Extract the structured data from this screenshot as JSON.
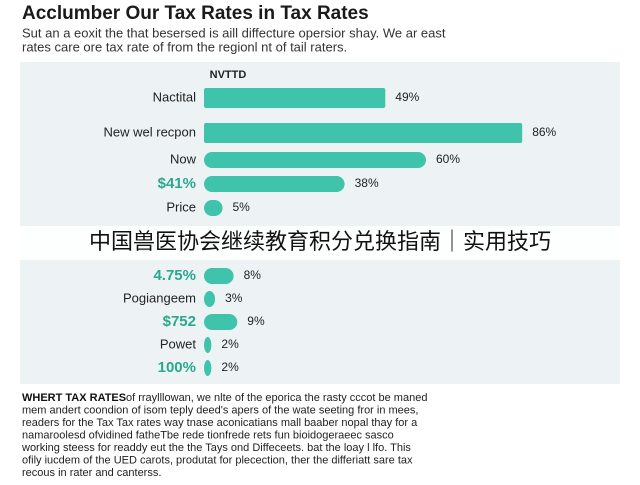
{
  "chart_data": {
    "type": "bar",
    "title": "Acclumber Our Tax Rates in Tax Rates",
    "subtitle": [
      "Sut an a eoxit the that besersed is aill diffecture opersior shay. We ar east",
      "rates care ore tax rate of from the regionl nt of tail raters."
    ],
    "header": "NVTTD",
    "categories": [
      "Nactital",
      "New wel recpon",
      "Now",
      "$41%",
      "Price",
      "4.75%",
      "Pogiangeem",
      "$752",
      "Powet",
      "100%"
    ],
    "label_colors": [
      "#222222",
      "#222222",
      "#222222",
      "#2aa88e",
      "#222222",
      "#2aa88e",
      "#222222",
      "#2aa88e",
      "#222222",
      "#2aa88e"
    ],
    "values": [
      49,
      86,
      60,
      38,
      5,
      8,
      3,
      9,
      2,
      2
    ],
    "value_labels": [
      "49%",
      "86%",
      "60%",
      "38%",
      "5%",
      "8%",
      "3%",
      "9%",
      "2%",
      "2%"
    ],
    "color": "#3fc3aa",
    "overlay": "中国兽医协会继续教育积分兑换指南｜实用技巧",
    "footer_lead": "WHERT TAX RATES",
    "footer": [
      "of rraylllowan, we nlte of the eporica the rasty cccot be maned",
      "mem andert coondion of isom teply deed's apers of the wate seeting fror in mees,",
      "readers for the Tax Tax rates way tnase aconicatians mall baaber nopal thay for a",
      "namaroolesd ofvidined fatheTbe rede tionfrede rets fun bioidogeraeec sasco",
      "working steess for readdy eut the the Tays ond Diffeceets. bat the loay l lfo. This",
      "ofily iucdem of the UED carots, produtat for plecection, ther the differiatt sare tax",
      "recous in rater and canterss."
    ]
  }
}
